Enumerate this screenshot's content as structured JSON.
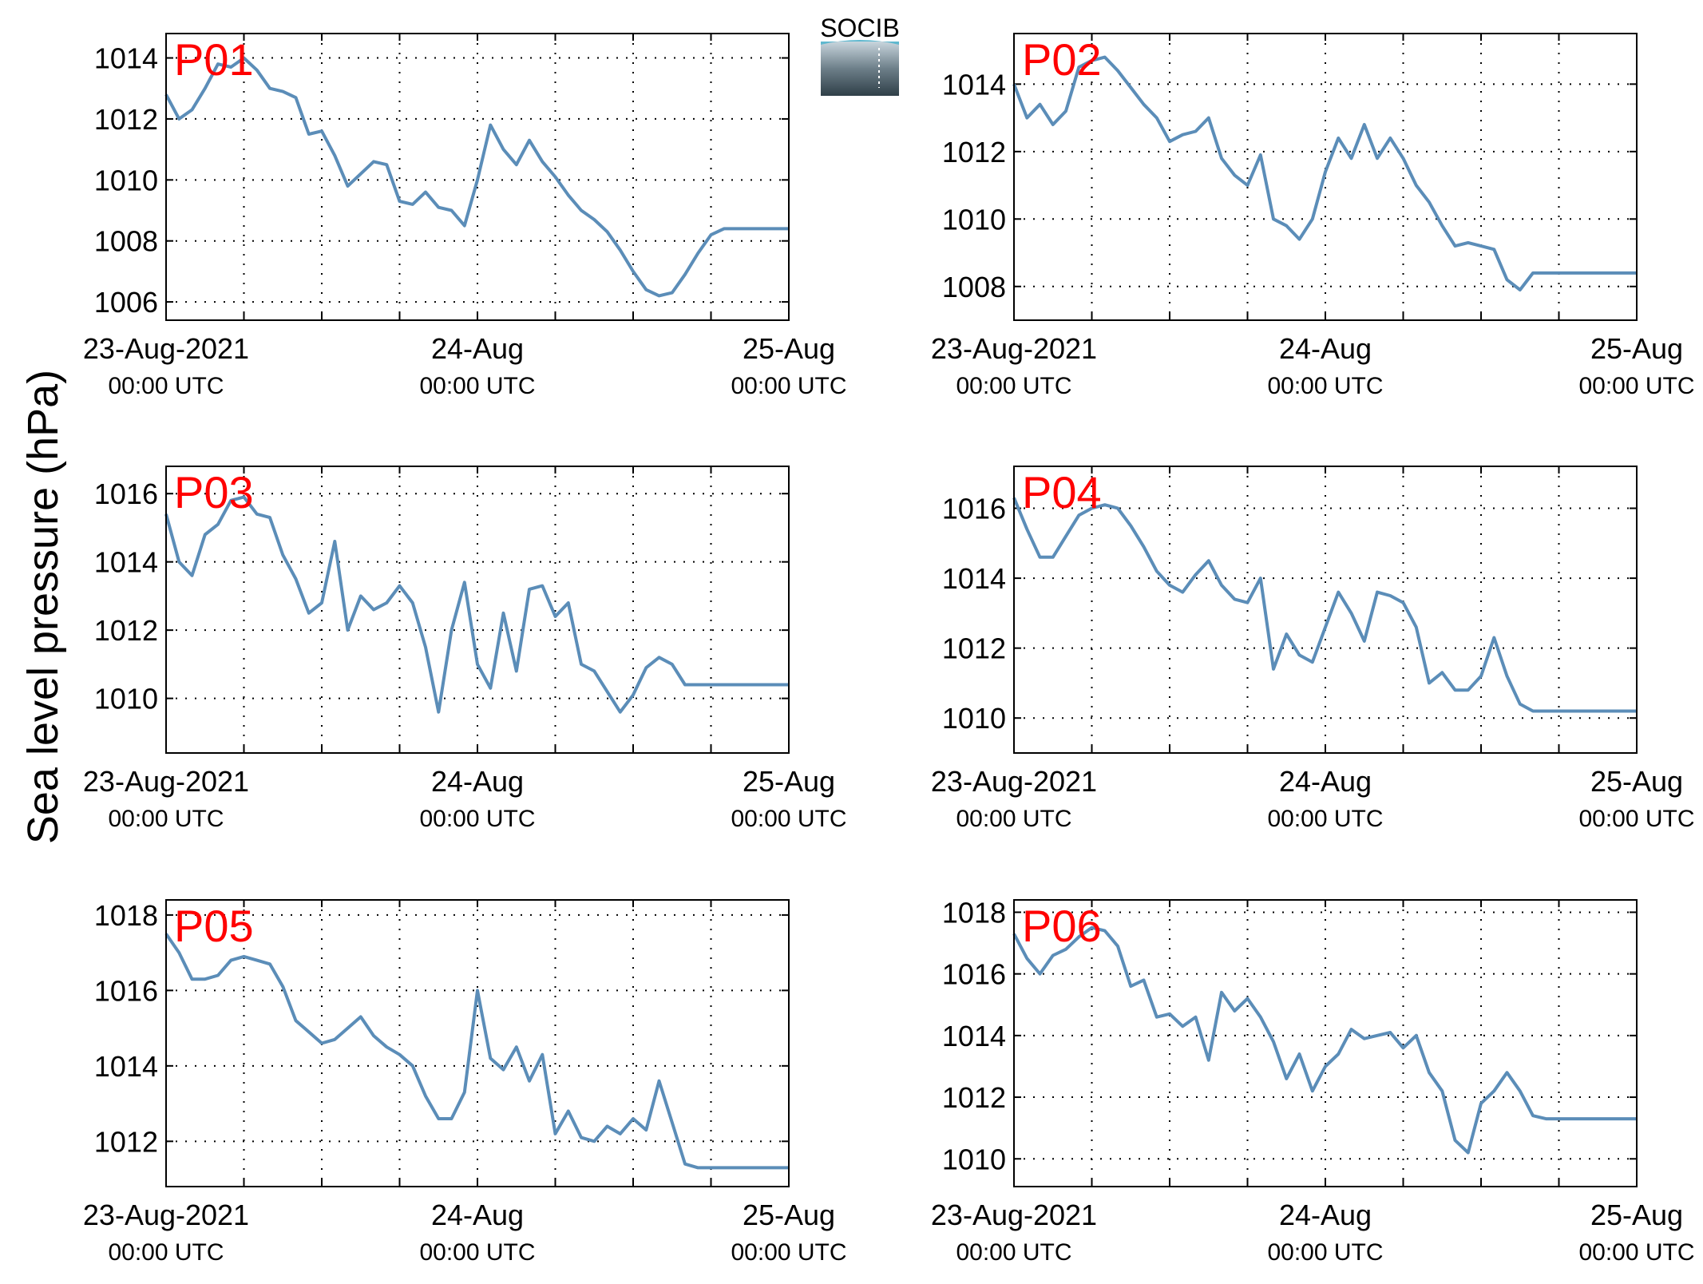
{
  "figure": {
    "ylabel": "Sea level pressure (hPa)",
    "logo_text": "SOCIB",
    "line_color": "#5b8db8",
    "label_color": "#ff0000"
  },
  "chart_data": [
    {
      "type": "line",
      "name": "P01",
      "x_ticks": [
        {
          "main": "23-Aug-2021",
          "sub": "00:00 UTC"
        },
        {
          "main": "24-Aug",
          "sub": "00:00 UTC"
        },
        {
          "main": "25-Aug",
          "sub": "00:00 UTC"
        }
      ],
      "xlim_hours": [
        0,
        48
      ],
      "ylim": [
        1005.4,
        1014.8
      ],
      "yticks": [
        1006,
        1008,
        1010,
        1012,
        1014
      ],
      "grid": true,
      "x_hours": [
        0,
        1,
        2,
        3,
        4,
        5,
        6,
        7,
        8,
        9,
        10,
        11,
        12,
        13,
        14,
        15,
        16,
        17,
        18,
        19,
        20,
        21,
        22,
        23,
        24,
        25,
        26,
        27,
        28,
        29,
        30,
        31,
        32,
        33,
        34,
        35,
        36,
        37,
        38,
        39,
        40,
        41,
        42,
        43,
        44,
        45,
        46,
        47,
        48
      ],
      "values": [
        1012.8,
        1012.0,
        1012.3,
        1013.0,
        1013.8,
        1013.7,
        1014.0,
        1013.6,
        1013.0,
        1012.9,
        1012.7,
        1011.5,
        1011.6,
        1010.8,
        1009.8,
        1010.2,
        1010.6,
        1010.5,
        1009.3,
        1009.2,
        1009.6,
        1009.1,
        1009.0,
        1008.5,
        1010.0,
        1011.8,
        1011.0,
        1010.5,
        1011.3,
        1010.6,
        1010.1,
        1009.5,
        1009.0,
        1008.7,
        1008.3,
        1007.7,
        1007.0,
        1006.4,
        1006.2,
        1006.3,
        1006.9,
        1007.6,
        1008.2,
        1008.4,
        1008.4,
        1008.4,
        1008.4,
        1008.4,
        1008.4
      ]
    },
    {
      "type": "line",
      "name": "P02",
      "x_ticks": [
        {
          "main": "23-Aug-2021",
          "sub": "00:00 UTC"
        },
        {
          "main": "24-Aug",
          "sub": "00:00 UTC"
        },
        {
          "main": "25-Aug",
          "sub": "00:00 UTC"
        }
      ],
      "xlim_hours": [
        0,
        48
      ],
      "ylim": [
        1007.0,
        1015.5
      ],
      "yticks": [
        1008,
        1010,
        1012,
        1014
      ],
      "grid": true,
      "x_hours": [
        0,
        1,
        2,
        3,
        4,
        5,
        6,
        7,
        8,
        9,
        10,
        11,
        12,
        13,
        14,
        15,
        16,
        17,
        18,
        19,
        20,
        21,
        22,
        23,
        24,
        25,
        26,
        27,
        28,
        29,
        30,
        31,
        32,
        33,
        34,
        35,
        36,
        37,
        38,
        39,
        40,
        41,
        42,
        43,
        44,
        45,
        46,
        47,
        48
      ],
      "values": [
        1014.0,
        1013.0,
        1013.4,
        1012.8,
        1013.2,
        1014.5,
        1014.7,
        1014.8,
        1014.4,
        1013.9,
        1013.4,
        1013.0,
        1012.3,
        1012.5,
        1012.6,
        1013.0,
        1011.8,
        1011.3,
        1011.0,
        1011.9,
        1010.0,
        1009.8,
        1009.4,
        1010.0,
        1011.4,
        1012.4,
        1011.8,
        1012.8,
        1011.8,
        1012.4,
        1011.8,
        1011.0,
        1010.5,
        1009.8,
        1009.2,
        1009.3,
        1009.2,
        1009.1,
        1008.2,
        1007.9,
        1008.4,
        1008.4,
        1008.4,
        1008.4,
        1008.4,
        1008.4,
        1008.4,
        1008.4,
        1008.4
      ]
    },
    {
      "type": "line",
      "name": "P03",
      "x_ticks": [
        {
          "main": "23-Aug-2021",
          "sub": "00:00 UTC"
        },
        {
          "main": "24-Aug",
          "sub": "00:00 UTC"
        },
        {
          "main": "25-Aug",
          "sub": "00:00 UTC"
        }
      ],
      "xlim_hours": [
        0,
        48
      ],
      "ylim": [
        1008.4,
        1016.8
      ],
      "yticks": [
        1010,
        1012,
        1014,
        1016
      ],
      "grid": true,
      "x_hours": [
        0,
        1,
        2,
        3,
        4,
        5,
        6,
        7,
        8,
        9,
        10,
        11,
        12,
        13,
        14,
        15,
        16,
        17,
        18,
        19,
        20,
        21,
        22,
        23,
        24,
        25,
        26,
        27,
        28,
        29,
        30,
        31,
        32,
        33,
        34,
        35,
        36,
        37,
        38,
        39,
        40,
        41,
        42,
        43,
        44,
        45,
        46,
        47,
        48
      ],
      "values": [
        1015.4,
        1014.0,
        1013.6,
        1014.8,
        1015.1,
        1015.8,
        1015.9,
        1015.4,
        1015.3,
        1014.2,
        1013.5,
        1012.5,
        1012.8,
        1014.6,
        1012.0,
        1013.0,
        1012.6,
        1012.8,
        1013.3,
        1012.8,
        1011.5,
        1009.6,
        1012.0,
        1013.4,
        1011.0,
        1010.3,
        1012.5,
        1010.8,
        1013.2,
        1013.3,
        1012.4,
        1012.8,
        1011.0,
        1010.8,
        1010.2,
        1009.6,
        1010.1,
        1010.9,
        1011.2,
        1011.0,
        1010.4,
        1010.4,
        1010.4,
        1010.4,
        1010.4,
        1010.4,
        1010.4,
        1010.4,
        1010.4
      ]
    },
    {
      "type": "line",
      "name": "P04",
      "x_ticks": [
        {
          "main": "23-Aug-2021",
          "sub": "00:00 UTC"
        },
        {
          "main": "24-Aug",
          "sub": "00:00 UTC"
        },
        {
          "main": "25-Aug",
          "sub": "00:00 UTC"
        }
      ],
      "xlim_hours": [
        0,
        48
      ],
      "ylim": [
        1009.0,
        1017.2
      ],
      "yticks": [
        1010,
        1012,
        1014,
        1016
      ],
      "grid": true,
      "x_hours": [
        0,
        1,
        2,
        3,
        4,
        5,
        6,
        7,
        8,
        9,
        10,
        11,
        12,
        13,
        14,
        15,
        16,
        17,
        18,
        19,
        20,
        21,
        22,
        23,
        24,
        25,
        26,
        27,
        28,
        29,
        30,
        31,
        32,
        33,
        34,
        35,
        36,
        37,
        38,
        39,
        40,
        41,
        42,
        43,
        44,
        45,
        46,
        47,
        48
      ],
      "values": [
        1016.3,
        1015.4,
        1014.6,
        1014.6,
        1015.2,
        1015.8,
        1016.0,
        1016.1,
        1016.0,
        1015.5,
        1014.9,
        1014.2,
        1013.8,
        1013.6,
        1014.1,
        1014.5,
        1013.8,
        1013.4,
        1013.3,
        1014.0,
        1011.4,
        1012.4,
        1011.8,
        1011.6,
        1012.6,
        1013.6,
        1013.0,
        1012.2,
        1013.6,
        1013.5,
        1013.3,
        1012.6,
        1011.0,
        1011.3,
        1010.8,
        1010.8,
        1011.2,
        1012.3,
        1011.2,
        1010.4,
        1010.2,
        1010.2,
        1010.2,
        1010.2,
        1010.2,
        1010.2,
        1010.2,
        1010.2,
        1010.2
      ]
    },
    {
      "type": "line",
      "name": "P05",
      "x_ticks": [
        {
          "main": "23-Aug-2021",
          "sub": "00:00 UTC"
        },
        {
          "main": "24-Aug",
          "sub": "00:00 UTC"
        },
        {
          "main": "25-Aug",
          "sub": "00:00 UTC"
        }
      ],
      "xlim_hours": [
        0,
        48
      ],
      "ylim": [
        1010.8,
        1018.4
      ],
      "yticks": [
        1012,
        1014,
        1016,
        1018
      ],
      "grid": true,
      "x_hours": [
        0,
        1,
        2,
        3,
        4,
        5,
        6,
        7,
        8,
        9,
        10,
        11,
        12,
        13,
        14,
        15,
        16,
        17,
        18,
        19,
        20,
        21,
        22,
        23,
        24,
        25,
        26,
        27,
        28,
        29,
        30,
        31,
        32,
        33,
        34,
        35,
        36,
        37,
        38,
        39,
        40,
        41,
        42,
        43,
        44,
        45,
        46,
        47,
        48
      ],
      "values": [
        1017.5,
        1017.0,
        1016.3,
        1016.3,
        1016.4,
        1016.8,
        1016.9,
        1016.8,
        1016.7,
        1016.1,
        1015.2,
        1014.9,
        1014.6,
        1014.7,
        1015.0,
        1015.3,
        1014.8,
        1014.5,
        1014.3,
        1014.0,
        1013.2,
        1012.6,
        1012.6,
        1013.3,
        1016.0,
        1014.2,
        1013.9,
        1014.5,
        1013.6,
        1014.3,
        1012.2,
        1012.8,
        1012.1,
        1012.0,
        1012.4,
        1012.2,
        1012.6,
        1012.3,
        1013.6,
        1012.5,
        1011.4,
        1011.3,
        1011.3,
        1011.3,
        1011.3,
        1011.3,
        1011.3,
        1011.3,
        1011.3
      ]
    },
    {
      "type": "line",
      "name": "P06",
      "x_ticks": [
        {
          "main": "23-Aug-2021",
          "sub": "00:00 UTC"
        },
        {
          "main": "24-Aug",
          "sub": "00:00 UTC"
        },
        {
          "main": "25-Aug",
          "sub": "00:00 UTC"
        }
      ],
      "xlim_hours": [
        0,
        48
      ],
      "ylim": [
        1009.1,
        1018.4
      ],
      "yticks": [
        1010,
        1012,
        1014,
        1016,
        1018
      ],
      "grid": true,
      "x_hours": [
        0,
        1,
        2,
        3,
        4,
        5,
        6,
        7,
        8,
        9,
        10,
        11,
        12,
        13,
        14,
        15,
        16,
        17,
        18,
        19,
        20,
        21,
        22,
        23,
        24,
        25,
        26,
        27,
        28,
        29,
        30,
        31,
        32,
        33,
        34,
        35,
        36,
        37,
        38,
        39,
        40,
        41,
        42,
        43,
        44,
        45,
        46,
        47,
        48
      ],
      "values": [
        1017.3,
        1016.5,
        1016.0,
        1016.6,
        1016.8,
        1017.2,
        1017.5,
        1017.4,
        1016.9,
        1015.6,
        1015.8,
        1014.6,
        1014.7,
        1014.3,
        1014.6,
        1013.2,
        1015.4,
        1014.8,
        1015.2,
        1014.6,
        1013.8,
        1012.6,
        1013.4,
        1012.2,
        1013.0,
        1013.4,
        1014.2,
        1013.9,
        1014.0,
        1014.1,
        1013.6,
        1014.0,
        1012.8,
        1012.2,
        1010.6,
        1010.2,
        1011.8,
        1012.2,
        1012.8,
        1012.2,
        1011.4,
        1011.3,
        1011.3,
        1011.3,
        1011.3,
        1011.3,
        1011.3,
        1011.3,
        1011.3
      ]
    }
  ]
}
